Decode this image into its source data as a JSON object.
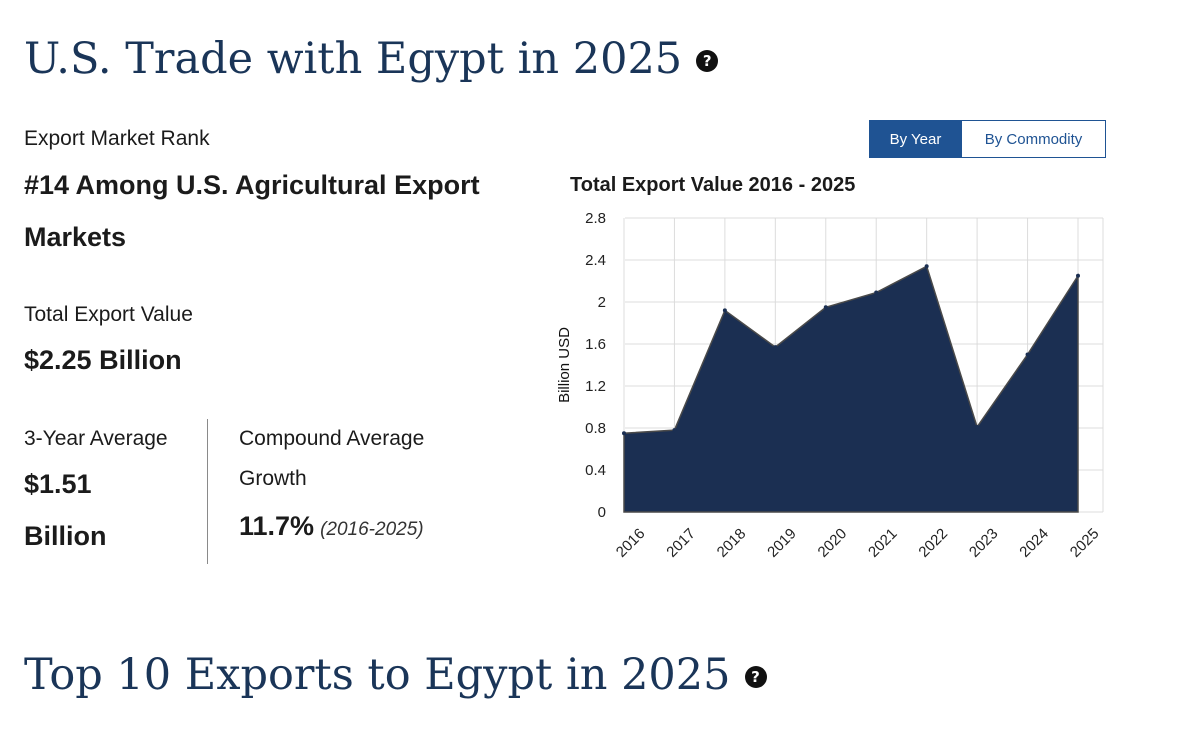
{
  "header": {
    "title": "U.S. Trade with Egypt in 2025",
    "help_icon": "question-circle-icon"
  },
  "rank": {
    "label": "Export Market Rank",
    "value_line1": "#14 Among U.S. Agricultural Export",
    "value_line2": "Markets"
  },
  "total_export": {
    "label": "Total Export Value",
    "value": "$2.25 Billion"
  },
  "three_year": {
    "label": "3-Year Average",
    "value_line1": "$1.51",
    "value_line2": "Billion"
  },
  "cagr": {
    "label_line1": "Compound Average",
    "label_line2": "Growth",
    "value": "11.7%",
    "period": "(2016-2025)"
  },
  "toggle": {
    "by_year": "By Year",
    "by_commodity": "By Commodity"
  },
  "colors": {
    "area_fill": "#1b2f52",
    "heading": "#1a3558",
    "accent": "#1f5393"
  },
  "chart_data": {
    "type": "area",
    "title": "Total Export Value 2016 - 2025",
    "ylabel": "Billion USD",
    "xlabel": "",
    "x": [
      "2016",
      "2017",
      "2018",
      "2019",
      "2020",
      "2021",
      "2022",
      "2023",
      "2024",
      "2025"
    ],
    "values": [
      0.75,
      0.78,
      1.92,
      1.57,
      1.95,
      2.09,
      2.34,
      0.81,
      1.5,
      2.25
    ],
    "ylim": [
      0,
      2.8
    ],
    "yticks": [
      "0",
      "0.4",
      "0.8",
      "1.2",
      "1.6",
      "2",
      "2.4",
      "2.8"
    ],
    "grid": true,
    "legend": "none"
  },
  "section2": {
    "title": "Top 10 Exports to Egypt in 2025",
    "help_icon": "question-circle-icon"
  }
}
